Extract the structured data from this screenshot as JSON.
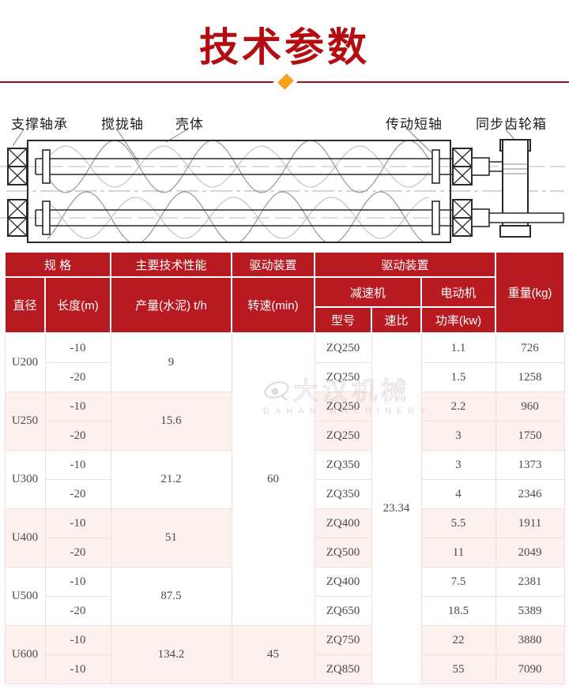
{
  "page": {
    "title": "技术参数",
    "accent_color": "#b30d12",
    "header_red": "#b71a20",
    "diamond_color": "#f6a21e",
    "row_pink": "#fdf1ef"
  },
  "diagram": {
    "labels": [
      {
        "text": "支撑轴承"
      },
      {
        "text": "搅拢轴"
      },
      {
        "text": "壳体"
      },
      {
        "text": "传动短轴"
      },
      {
        "text": "同步齿轮箱"
      }
    ]
  },
  "watermark": {
    "cn": "大汉机械",
    "en": "DAHAN MACHINERY"
  },
  "table": {
    "header": {
      "spec_group": "规 格",
      "perf_group": "主要技术性能",
      "drive_group1": "驱动装置",
      "drive_group2": "驱动装置",
      "weight": "重量(kg)",
      "diameter": "直径",
      "length": "长度(m)",
      "output": "产量(水泥) t/h",
      "speed": "转速(min)",
      "reducer": "减速机",
      "motor": "电动机",
      "model": "型号",
      "ratio": "速比",
      "power": "功率(kw)"
    },
    "merged": {
      "speed_top": "60",
      "speed_bottom": "45",
      "ratio_all": "23.34"
    },
    "groups": [
      {
        "diameter": "U200",
        "output": "9",
        "rows": [
          {
            "length": "-10",
            "model": "ZQ250",
            "power": "1.1",
            "weight": "726"
          },
          {
            "length": "-20",
            "model": "ZQ250",
            "power": "1.5",
            "weight": "1258"
          }
        ]
      },
      {
        "diameter": "U250",
        "output": "15.6",
        "rows": [
          {
            "length": "-10",
            "model": "ZQ250",
            "power": "2.2",
            "weight": "960"
          },
          {
            "length": "-20",
            "model": "ZQ250",
            "power": "3",
            "weight": "1750"
          }
        ]
      },
      {
        "diameter": "U300",
        "output": "21.2",
        "rows": [
          {
            "length": "-10",
            "model": "ZQ350",
            "power": "3",
            "weight": "1373"
          },
          {
            "length": "-20",
            "model": "ZQ350",
            "power": "4",
            "weight": "2346"
          }
        ]
      },
      {
        "diameter": "U400",
        "output": "51",
        "rows": [
          {
            "length": "-10",
            "model": "ZQ400",
            "power": "5.5",
            "weight": "1911"
          },
          {
            "length": "-20",
            "model": "ZQ500",
            "power": "11",
            "weight": "2049"
          }
        ]
      },
      {
        "diameter": "U500",
        "output": "87.5",
        "rows": [
          {
            "length": "-10",
            "model": "ZQ400",
            "power": "7.5",
            "weight": "2381"
          },
          {
            "length": "-20",
            "model": "ZQ650",
            "power": "18.5",
            "weight": "5389"
          }
        ]
      },
      {
        "diameter": "U600",
        "output": "134.2",
        "rows": [
          {
            "length": "-10",
            "model": "ZQ750",
            "power": "22",
            "weight": "3880"
          },
          {
            "length": "-10",
            "model": "ZQ850",
            "power": "55",
            "weight": "7090"
          }
        ]
      }
    ]
  }
}
